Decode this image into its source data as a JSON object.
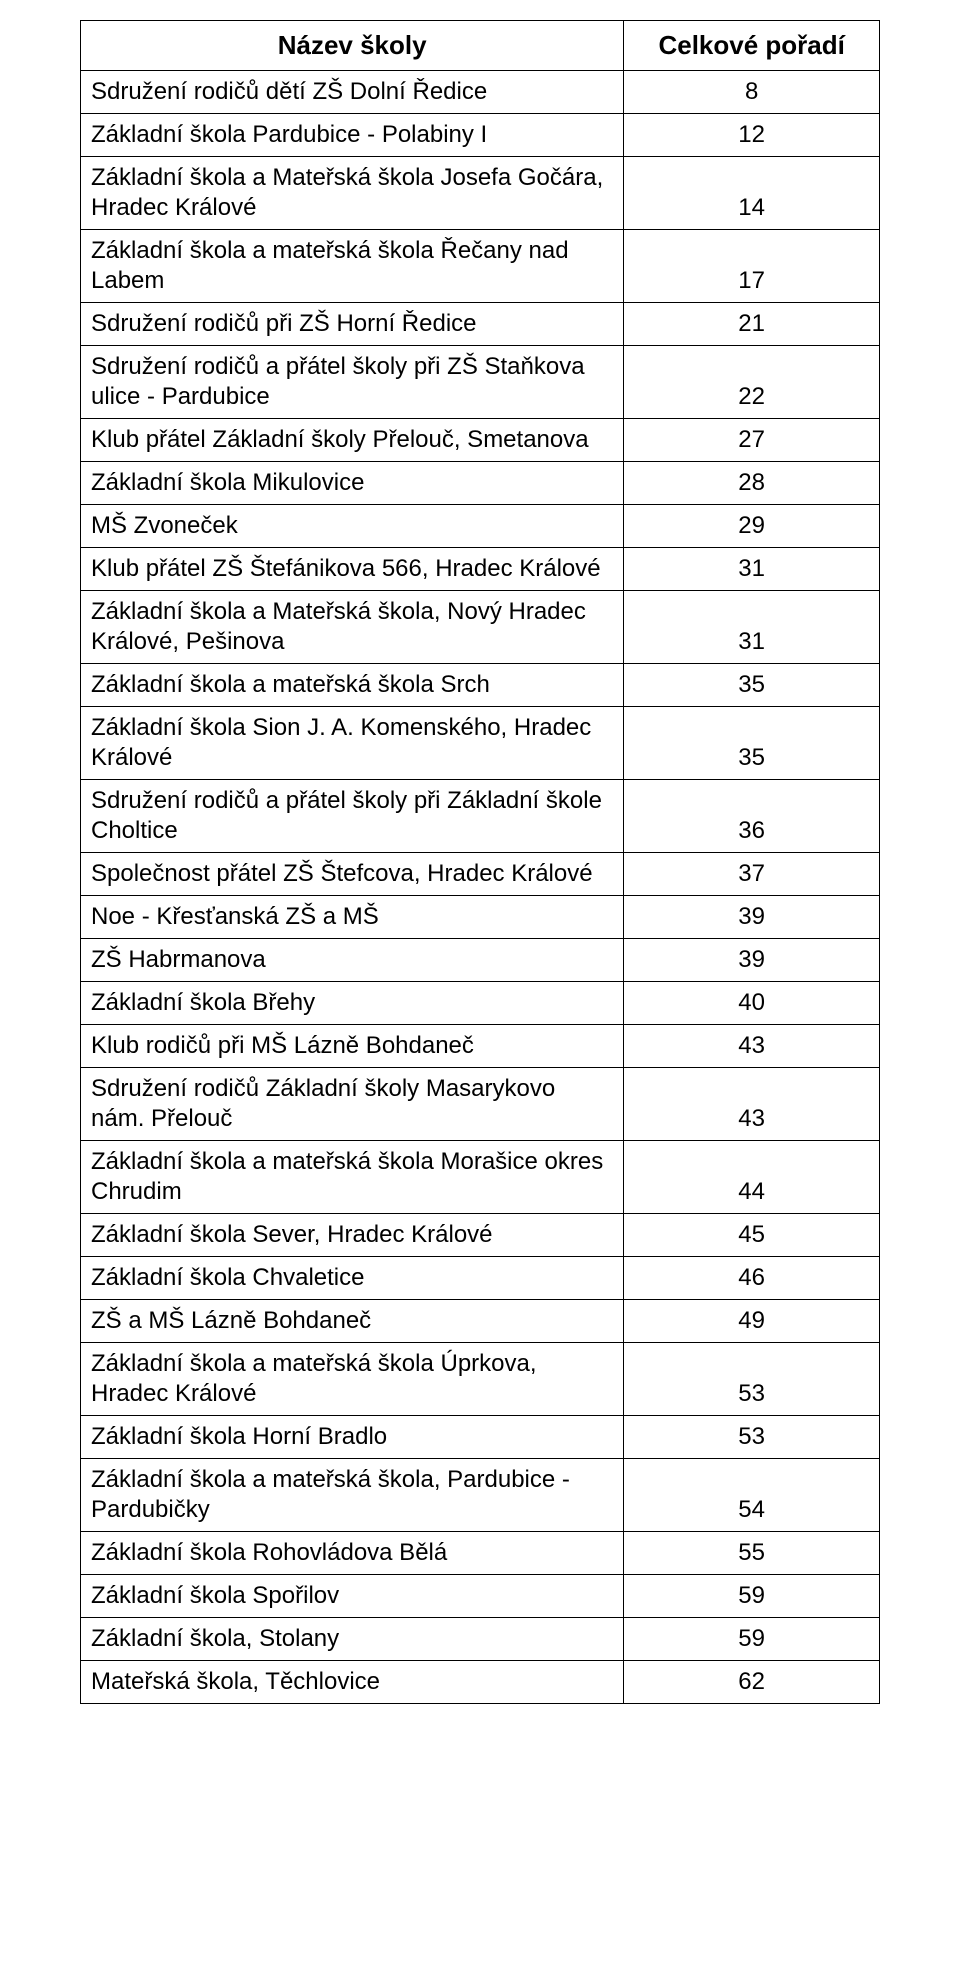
{
  "table": {
    "header": {
      "name": "Název školy",
      "rank": "Celkové pořadí"
    },
    "rows": [
      {
        "name": "Sdružení rodičů dětí ZŠ Dolní Ředice",
        "rank": "8"
      },
      {
        "name": "Základní škola Pardubice - Polabiny I",
        "rank": "12"
      },
      {
        "name": "Základní škola a Mateřská škola Josefa Gočára, Hradec Králové",
        "rank": "14"
      },
      {
        "name": "Základní škola a mateřská škola Řečany nad Labem",
        "rank": "17"
      },
      {
        "name": "Sdružení rodičů při ZŠ Horní Ředice",
        "rank": "21"
      },
      {
        "name": "Sdružení rodičů a přátel školy při ZŠ Staňkova ulice - Pardubice",
        "rank": "22"
      },
      {
        "name": "Klub přátel Základní školy Přelouč, Smetanova",
        "rank": "27"
      },
      {
        "name": "Základní škola Mikulovice",
        "rank": "28"
      },
      {
        "name": "MŠ Zvoneček",
        "rank": "29"
      },
      {
        "name": "Klub přátel ZŠ Štefánikova 566, Hradec Králové",
        "rank": "31"
      },
      {
        "name": "Základní škola a Mateřská škola, Nový Hradec Králové, Pešinova",
        "rank": "31"
      },
      {
        "name": "Základní škola a mateřská škola Srch",
        "rank": "35"
      },
      {
        "name": "Základní škola Sion J. A. Komenského, Hradec Králové",
        "rank": "35"
      },
      {
        "name": "Sdružení rodičů a přátel školy při Základní škole Choltice",
        "rank": "36"
      },
      {
        "name": "Společnost přátel ZŠ Štefcova, Hradec Králové",
        "rank": "37"
      },
      {
        "name": "Noe - Křesťanská ZŠ a MŠ",
        "rank": "39"
      },
      {
        "name": "ZŠ Habrmanova",
        "rank": "39"
      },
      {
        "name": "Základní škola Břehy",
        "rank": "40"
      },
      {
        "name": "Klub rodičů při MŠ Lázně Bohdaneč",
        "rank": "43"
      },
      {
        "name": "Sdružení rodičů Základní školy  Masarykovo nám. Přelouč",
        "rank": "43"
      },
      {
        "name": "Základní škola a mateřská škola Morašice okres Chrudim",
        "rank": "44"
      },
      {
        "name": "Základní škola Sever, Hradec Králové",
        "rank": "45"
      },
      {
        "name": "Základní škola Chvaletice",
        "rank": "46"
      },
      {
        "name": "ZŠ a MŠ Lázně Bohdaneč",
        "rank": "49"
      },
      {
        "name": "Základní škola a mateřská škola Úprkova, Hradec Králové",
        "rank": "53"
      },
      {
        "name": "Základní škola Horní Bradlo",
        "rank": "53"
      },
      {
        "name": "Základní škola a mateřská škola, Pardubice - Pardubičky",
        "rank": "54"
      },
      {
        "name": "Základní škola Rohovládova Bělá",
        "rank": "55"
      },
      {
        "name": "Základní škola Spořilov",
        "rank": "59"
      },
      {
        "name": "Základní škola, Stolany",
        "rank": "59"
      },
      {
        "name": "Mateřská škola, Těchlovice",
        "rank": "62"
      }
    ]
  }
}
